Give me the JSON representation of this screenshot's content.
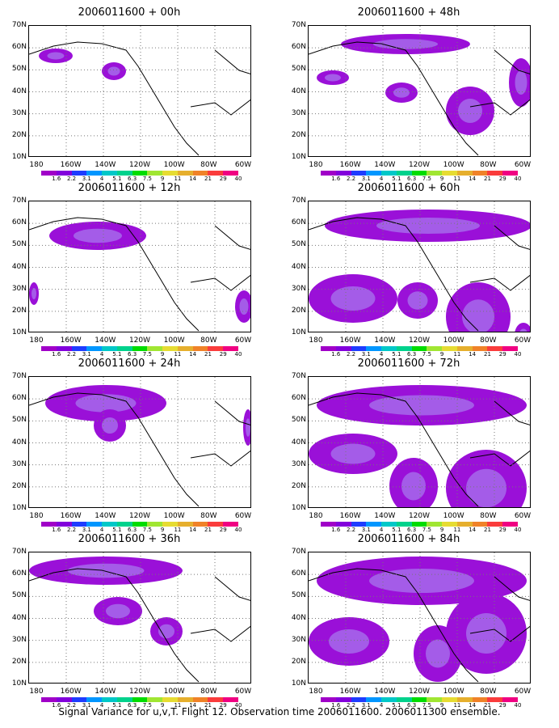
{
  "panels": [
    {
      "title": "2006011600 + 00h",
      "col": 0,
      "row": 0
    },
    {
      "title": "2006011600 + 48h",
      "col": 1,
      "row": 0
    },
    {
      "title": "2006011600 + 12h",
      "col": 0,
      "row": 1
    },
    {
      "title": "2006011600 + 60h",
      "col": 1,
      "row": 1
    },
    {
      "title": "2006011600 + 24h",
      "col": 0,
      "row": 2
    },
    {
      "title": "2006011600 + 72h",
      "col": 1,
      "row": 2
    },
    {
      "title": "2006011600 + 36h",
      "col": 0,
      "row": 3
    },
    {
      "title": "2006011600 + 84h",
      "col": 1,
      "row": 3
    }
  ],
  "lat_labels": [
    "70N",
    "60N",
    "50N",
    "40N",
    "30N",
    "20N",
    "10N"
  ],
  "lon_labels": [
    "180",
    "160W",
    "140W",
    "120W",
    "100W",
    "80W",
    "60W"
  ],
  "scale_labels": [
    "1.6",
    "2.2",
    "3.1",
    "4",
    "5.1",
    "6.3",
    "7.5",
    "9",
    "11",
    "14",
    "21",
    "29",
    "40"
  ],
  "scale_colors": [
    "#a000c8",
    "#8200dc",
    "#1e3cff",
    "#0096ff",
    "#00c8c8",
    "#00d28c",
    "#00dc00",
    "#a0e632",
    "#e6dc32",
    "#e6af2d",
    "#f08228",
    "#fa3c3c",
    "#f00082"
  ],
  "footer": "Signal Variance for u,v,T. Flight 12. Observation time 2006011600. 2006011300 ensemble."
}
